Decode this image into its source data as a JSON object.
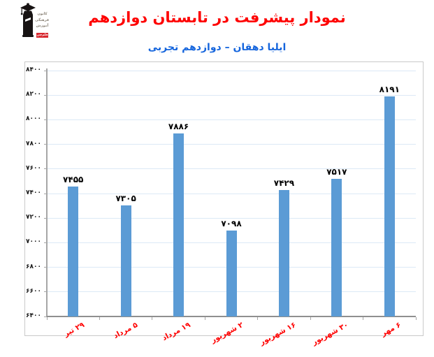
{
  "header": {
    "title": "نمودار پیشرفت در تابستان دوازدهم",
    "subtitle": "ایلیا دهقان – دوازدهم تجربی",
    "title_color": "#fe0000",
    "subtitle_color": "#1565dd"
  },
  "logo": {
    "text_lines": [
      "کانون",
      "فرهنگی",
      "آموزش"
    ],
    "badge": "قلم‌چی",
    "badge_color": "#d7282f",
    "figure_color": "#171313"
  },
  "chart_data": {
    "type": "bar",
    "title": "نمودار پیشرفت در تابستان دوازدهم",
    "subtitle": "ایلیا دهقان – دوازدهم تجربی",
    "categories": [
      "۲۹ تیر",
      "۵ مرداد",
      "۱۹ مرداد",
      "۲ شهریور",
      "۱۶ شهریور",
      "۳۰ شهریور",
      "۶ مهر"
    ],
    "values": [
      7455,
      7305,
      7886,
      7098,
      7429,
      7517,
      8191
    ],
    "value_labels": [
      "۷۴۵۵",
      "۷۳۰۵",
      "۷۸۸۶",
      "۷۰۹۸",
      "۷۴۲۹",
      "۷۵۱۷",
      "۸۱۹۱"
    ],
    "ylim": [
      6400,
      8400
    ],
    "ytick_step": 200,
    "ytick_labels": [
      "۶۴۰۰",
      "۶۶۰۰",
      "۶۸۰۰",
      "۷۰۰۰",
      "۷۲۰۰",
      "۷۴۰۰",
      "۷۶۰۰",
      "۷۸۰۰",
      "۸۰۰۰",
      "۸۲۰۰",
      "۸۴۰۰"
    ],
    "xlabel": "",
    "ylabel": "",
    "grid": true,
    "legend": "none",
    "bar_color": "#5b9bd5",
    "gridline_color": "#dce9f6",
    "axis_color": "#a6a6a6",
    "xaxis_line_color": "#8f8f8f",
    "xlabel_color": "#fe0000"
  }
}
